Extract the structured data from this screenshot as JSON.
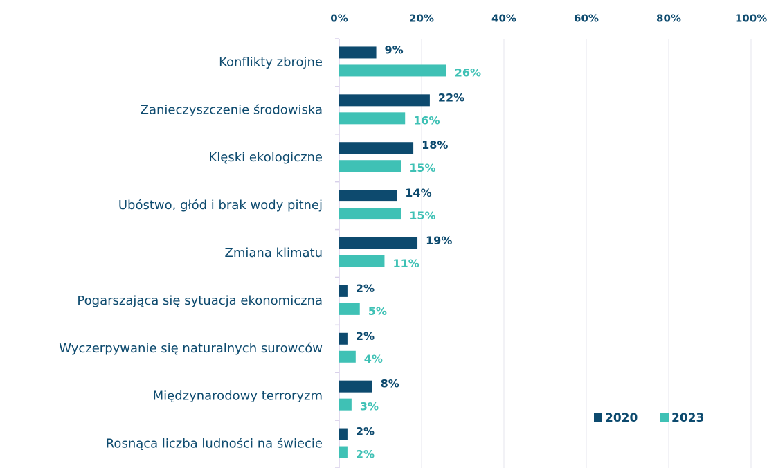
{
  "chart_data": {
    "type": "bar",
    "orientation": "horizontal",
    "categories": [
      "Konflikty zbrojne",
      "Zanieczyszczenie środowiska",
      "Klęski ekologiczne",
      "Ubóstwo, głód i brak wody pitnej",
      "Zmiana klimatu",
      "Pogarszająca się sytuacja ekonomiczna",
      "Wyczerpywanie się naturalnych surowców",
      "Międzynarodowy terroryzm",
      "Rosnąca liczba ludności na świecie"
    ],
    "series": [
      {
        "name": "2020",
        "color": "#0d4a6e",
        "values": [
          9,
          22,
          18,
          14,
          19,
          2,
          2,
          8,
          2
        ],
        "value_labels": [
          "9%",
          "22%",
          "18%",
          "14%",
          "19%",
          "2%",
          "2%",
          "8%",
          "2%"
        ]
      },
      {
        "name": "2023",
        "color": "#3fc1b5",
        "values": [
          26,
          16,
          15,
          15,
          11,
          5,
          4,
          3,
          2
        ],
        "value_labels": [
          "26%",
          "16%",
          "15%",
          "15%",
          "11%",
          "5%",
          "4%",
          "3%",
          "2%"
        ]
      }
    ],
    "xlim": [
      0,
      100
    ],
    "xticks": [
      {
        "value": 0,
        "label": "0%"
      },
      {
        "value": 20,
        "label": "20%"
      },
      {
        "value": 40,
        "label": "40%"
      },
      {
        "value": 60,
        "label": "60%"
      },
      {
        "value": 80,
        "label": "80%"
      },
      {
        "value": 100,
        "label": "100%"
      }
    ],
    "grid": true,
    "legend": "lower right"
  }
}
